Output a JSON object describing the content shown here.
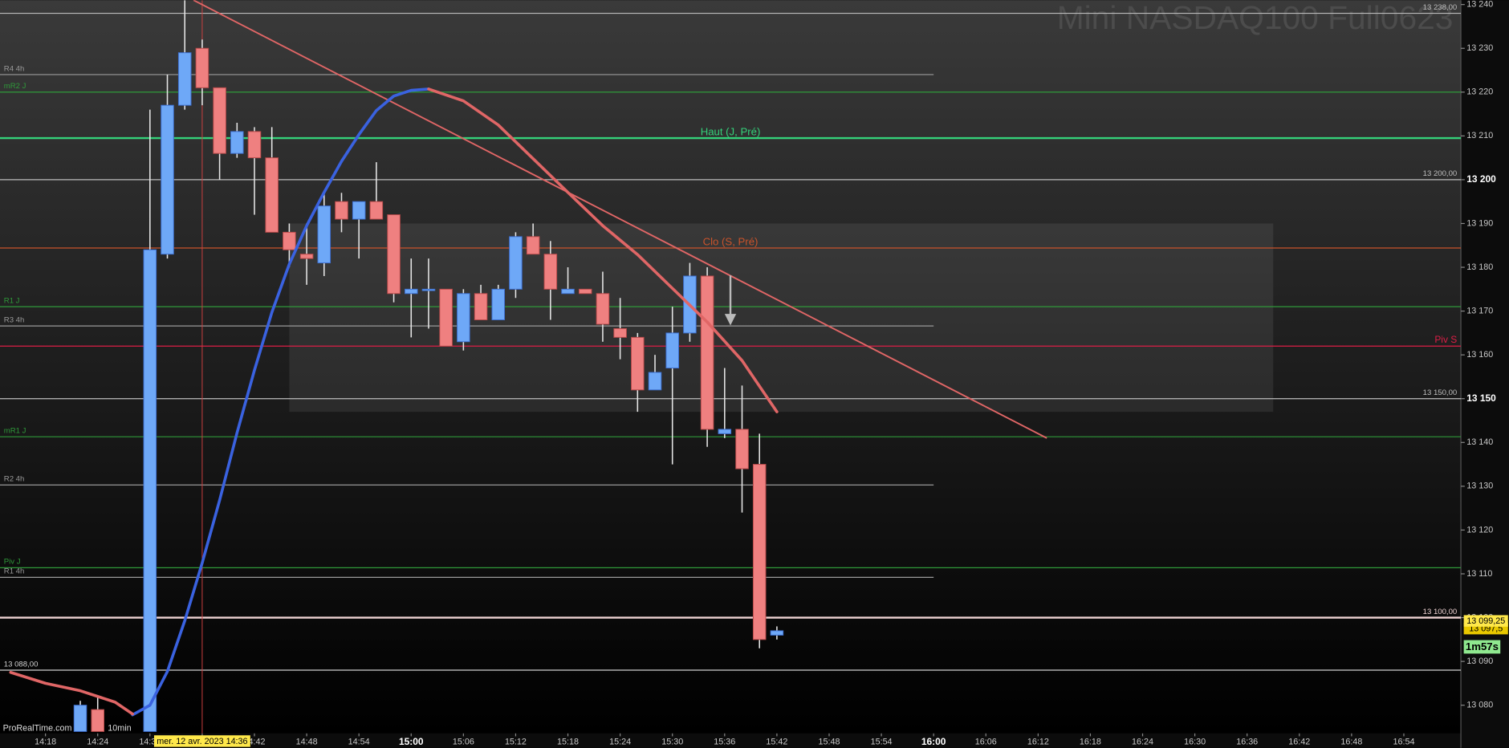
{
  "chart_data": {
    "type": "candlestick",
    "title": "Mini NASDAQ100 Full0623",
    "footer": [
      "ProRealTime.com",
      "10min"
    ],
    "xlim": [
      "14:13",
      "17:00"
    ],
    "ylim": [
      13074,
      13241
    ],
    "xticks": [
      "14:18",
      "14:24",
      "14:30",
      "14:36",
      "14:42",
      "14:48",
      "14:54",
      "15:00",
      "15:06",
      "15:12",
      "15:18",
      "15:24",
      "15:30",
      "15:36",
      "15:42",
      "15:48",
      "15:54",
      "16:00",
      "16:06",
      "16:12",
      "16:18",
      "16:24",
      "16:30",
      "16:36",
      "16:42",
      "16:48",
      "16:54"
    ],
    "yticks": [
      {
        "value": 13080,
        "label": "13 080"
      },
      {
        "value": 13090,
        "label": "13 090"
      },
      {
        "value": 13100,
        "label": "13 100"
      },
      {
        "value": 13110,
        "label": "13 110"
      },
      {
        "value": 13120,
        "label": "13 120"
      },
      {
        "value": 13130,
        "label": "13 130"
      },
      {
        "value": 13140,
        "label": "13 140"
      },
      {
        "value": 13150,
        "label": "13 150",
        "bold": true
      },
      {
        "value": 13160,
        "label": "13 160"
      },
      {
        "value": 13170,
        "label": "13 170"
      },
      {
        "value": 13180,
        "label": "13 180"
      },
      {
        "value": 13190,
        "label": "13 190"
      },
      {
        "value": 13200,
        "label": "13 200",
        "bold": true
      },
      {
        "value": 13210,
        "label": "13 210"
      },
      {
        "value": 13220,
        "label": "13 220"
      },
      {
        "value": 13230,
        "label": "13 230"
      },
      {
        "value": 13240,
        "label": "13 240"
      }
    ],
    "candles": {
      "up_color": "#6ea8f7",
      "down_color": "#ef8080",
      "x": [
        "14:22",
        "14:24",
        "14:30",
        "14:32",
        "14:34",
        "14:36",
        "14:38",
        "14:40",
        "14:42",
        "14:44",
        "14:46",
        "14:48",
        "14:50",
        "14:52",
        "14:54",
        "14:56",
        "14:58",
        "15:00",
        "15:02",
        "15:04",
        "15:06",
        "15:08",
        "15:10",
        "15:12",
        "15:14",
        "15:16",
        "15:18",
        "15:20",
        "15:22",
        "15:24",
        "15:26",
        "15:28",
        "15:30",
        "15:32",
        "15:34",
        "15:36",
        "15:38",
        "15:40",
        "15:42"
      ],
      "open": [
        13074,
        13079,
        13074,
        13183,
        13217,
        13230,
        13221,
        13206,
        13211,
        13205,
        13188,
        13183,
        13181,
        13195,
        13191,
        13195,
        13192,
        13174,
        13175,
        13175,
        13163,
        13174,
        13168,
        13175,
        13187,
        13183,
        13174,
        13175,
        13174,
        13166,
        13164,
        13152,
        13157,
        13165,
        13178,
        13142,
        13143,
        13135,
        13096
      ],
      "high": [
        13081,
        13082,
        13216,
        13224,
        13241,
        13232,
        13221,
        13213,
        13212,
        13212,
        13190,
        13190,
        13197,
        13197,
        13195,
        13204,
        13192,
        13182,
        13182,
        13175,
        13175,
        13176,
        13176,
        13188,
        13190,
        13186,
        13180,
        13175,
        13179,
        13173,
        13165,
        13160,
        13171,
        13181,
        13180,
        13157,
        13153,
        13142,
        13098
      ],
      "low": [
        13074,
        13074,
        13074,
        13182,
        13216,
        13217,
        13200,
        13205,
        13192,
        13188,
        13180,
        13176,
        13178,
        13188,
        13182,
        13191,
        13172,
        13164,
        13166,
        13162,
        13161,
        13168,
        13168,
        13173,
        13183,
        13168,
        13174,
        13174,
        13163,
        13159,
        13147,
        13152,
        13135,
        13163,
        13139,
        13141,
        13124,
        13093,
        13095
      ],
      "close": [
        13080,
        13074,
        13184,
        13217,
        13229,
        13221,
        13206,
        13211,
        13205,
        13188,
        13184,
        13182,
        13194,
        13191,
        13195,
        13191,
        13174,
        13175,
        13175,
        13162,
        13174,
        13168,
        13175,
        13187,
        13183,
        13175,
        13175,
        13174,
        13167,
        13164,
        13152,
        13156,
        13165,
        13178,
        13143,
        13143,
        13134,
        13095,
        13097
      ]
    },
    "series": [
      {
        "color": "#3a62e0",
        "width": 3,
        "x": [
          "14:28",
          "14:30",
          "14:32",
          "14:34",
          "14:36",
          "14:38",
          "14:40",
          "14:42",
          "14:44",
          "14:46",
          "14:48",
          "14:50",
          "14:52",
          "14:54",
          "14:56",
          "14:58",
          "15:00",
          "15:02"
        ],
        "values": [
          13077.8,
          13080,
          13087.7,
          13099.3,
          13112.5,
          13126.8,
          13142.2,
          13156.5,
          13169.7,
          13180.7,
          13189.5,
          13197.1,
          13204.2,
          13210.3,
          13215.8,
          13219.1,
          13220.4,
          13220.7
        ]
      },
      {
        "color": "#e06666",
        "width": 3,
        "x": [
          "14:14",
          "14:18",
          "14:22",
          "14:26",
          "14:28",
          "14:30",
          "15:02",
          "15:06",
          "15:10",
          "15:14",
          "15:18",
          "15:22",
          "15:26",
          "15:30",
          "15:34",
          "15:38",
          "15:42"
        ],
        "values": [
          13087.5,
          13085,
          13083.3,
          13080.7,
          13078,
          null,
          13220.7,
          13218,
          13212.5,
          13204.8,
          13197.1,
          13189.5,
          13182.9,
          13175.2,
          13167.5,
          13158.7,
          13147
        ]
      }
    ],
    "trendline": {
      "color": "#e06666",
      "x": [
        "14:35",
        "16:13"
      ],
      "values": [
        13241,
        13141
      ]
    },
    "zone": {
      "x": [
        "14:46",
        "16:39"
      ],
      "values": [
        13190,
        13147
      ]
    },
    "levels": [
      {
        "label": "13 238,00",
        "value": 13238,
        "color": "#bdbdbd",
        "label_at": "right"
      },
      {
        "label": "R4 4h",
        "value": 13224,
        "color": "#9a9a9a",
        "label_at": "left",
        "end": "16:00"
      },
      {
        "label": "mR2 J",
        "value": 13220,
        "color": "#2f9a3a",
        "label_at": "left"
      },
      {
        "label": "Haut (J, Pré)",
        "value": 13209.5,
        "color": "#34d17a",
        "label_at": "center",
        "width": 2
      },
      {
        "label": "13 200,00",
        "value": 13200,
        "color": "#bdbdbd",
        "label_at": "right"
      },
      {
        "label": "Clo (S, Pré)",
        "value": 13184.4,
        "color": "#c9532b",
        "label_at": "center"
      },
      {
        "label": "R1 J",
        "value": 13171,
        "color": "#2f9a3a",
        "label_at": "left"
      },
      {
        "label": "R3 4h",
        "value": 13166.6,
        "color": "#9a9a9a",
        "label_at": "left",
        "end": "16:00"
      },
      {
        "label": "Piv S",
        "value": 13162,
        "color": "#dc1e46",
        "label_at": "right"
      },
      {
        "label": "13 150,00",
        "value": 13150,
        "color": "#bdbdbd",
        "label_at": "right"
      },
      {
        "label": "mR1 J",
        "value": 13141.3,
        "color": "#2f9a3a",
        "label_at": "left"
      },
      {
        "label": "R2 4h",
        "value": 13130.3,
        "color": "#9a9a9a",
        "label_at": "left",
        "end": "16:00"
      },
      {
        "label": "Piv J",
        "value": 13111.4,
        "color": "#2f9a3a",
        "label_at": "left"
      },
      {
        "label": "R1 4h",
        "value": 13109.2,
        "color": "#9a9a9a",
        "label_at": "left",
        "end": "16:00"
      },
      {
        "label": "13 100,00",
        "value": 13100,
        "color": "#f0d4d4",
        "label_at": "right",
        "width": 2
      },
      {
        "label": "13 088,00",
        "value": 13088,
        "color": "#d0d0d0",
        "label_at": "left"
      }
    ],
    "price_tags": [
      {
        "label": "13 097,5",
        "value": 13097.5,
        "bg": "#e8c800"
      },
      {
        "label": "13 099,25",
        "value": 13099.25,
        "bg": "#ffe84a"
      }
    ],
    "countdown": {
      "label": "1m57s",
      "bg": "#8fe88f"
    },
    "crosshair": {
      "x": "14:36",
      "label": "mer. 12 avr. 2023 14:36",
      "color": "#d04040"
    }
  }
}
